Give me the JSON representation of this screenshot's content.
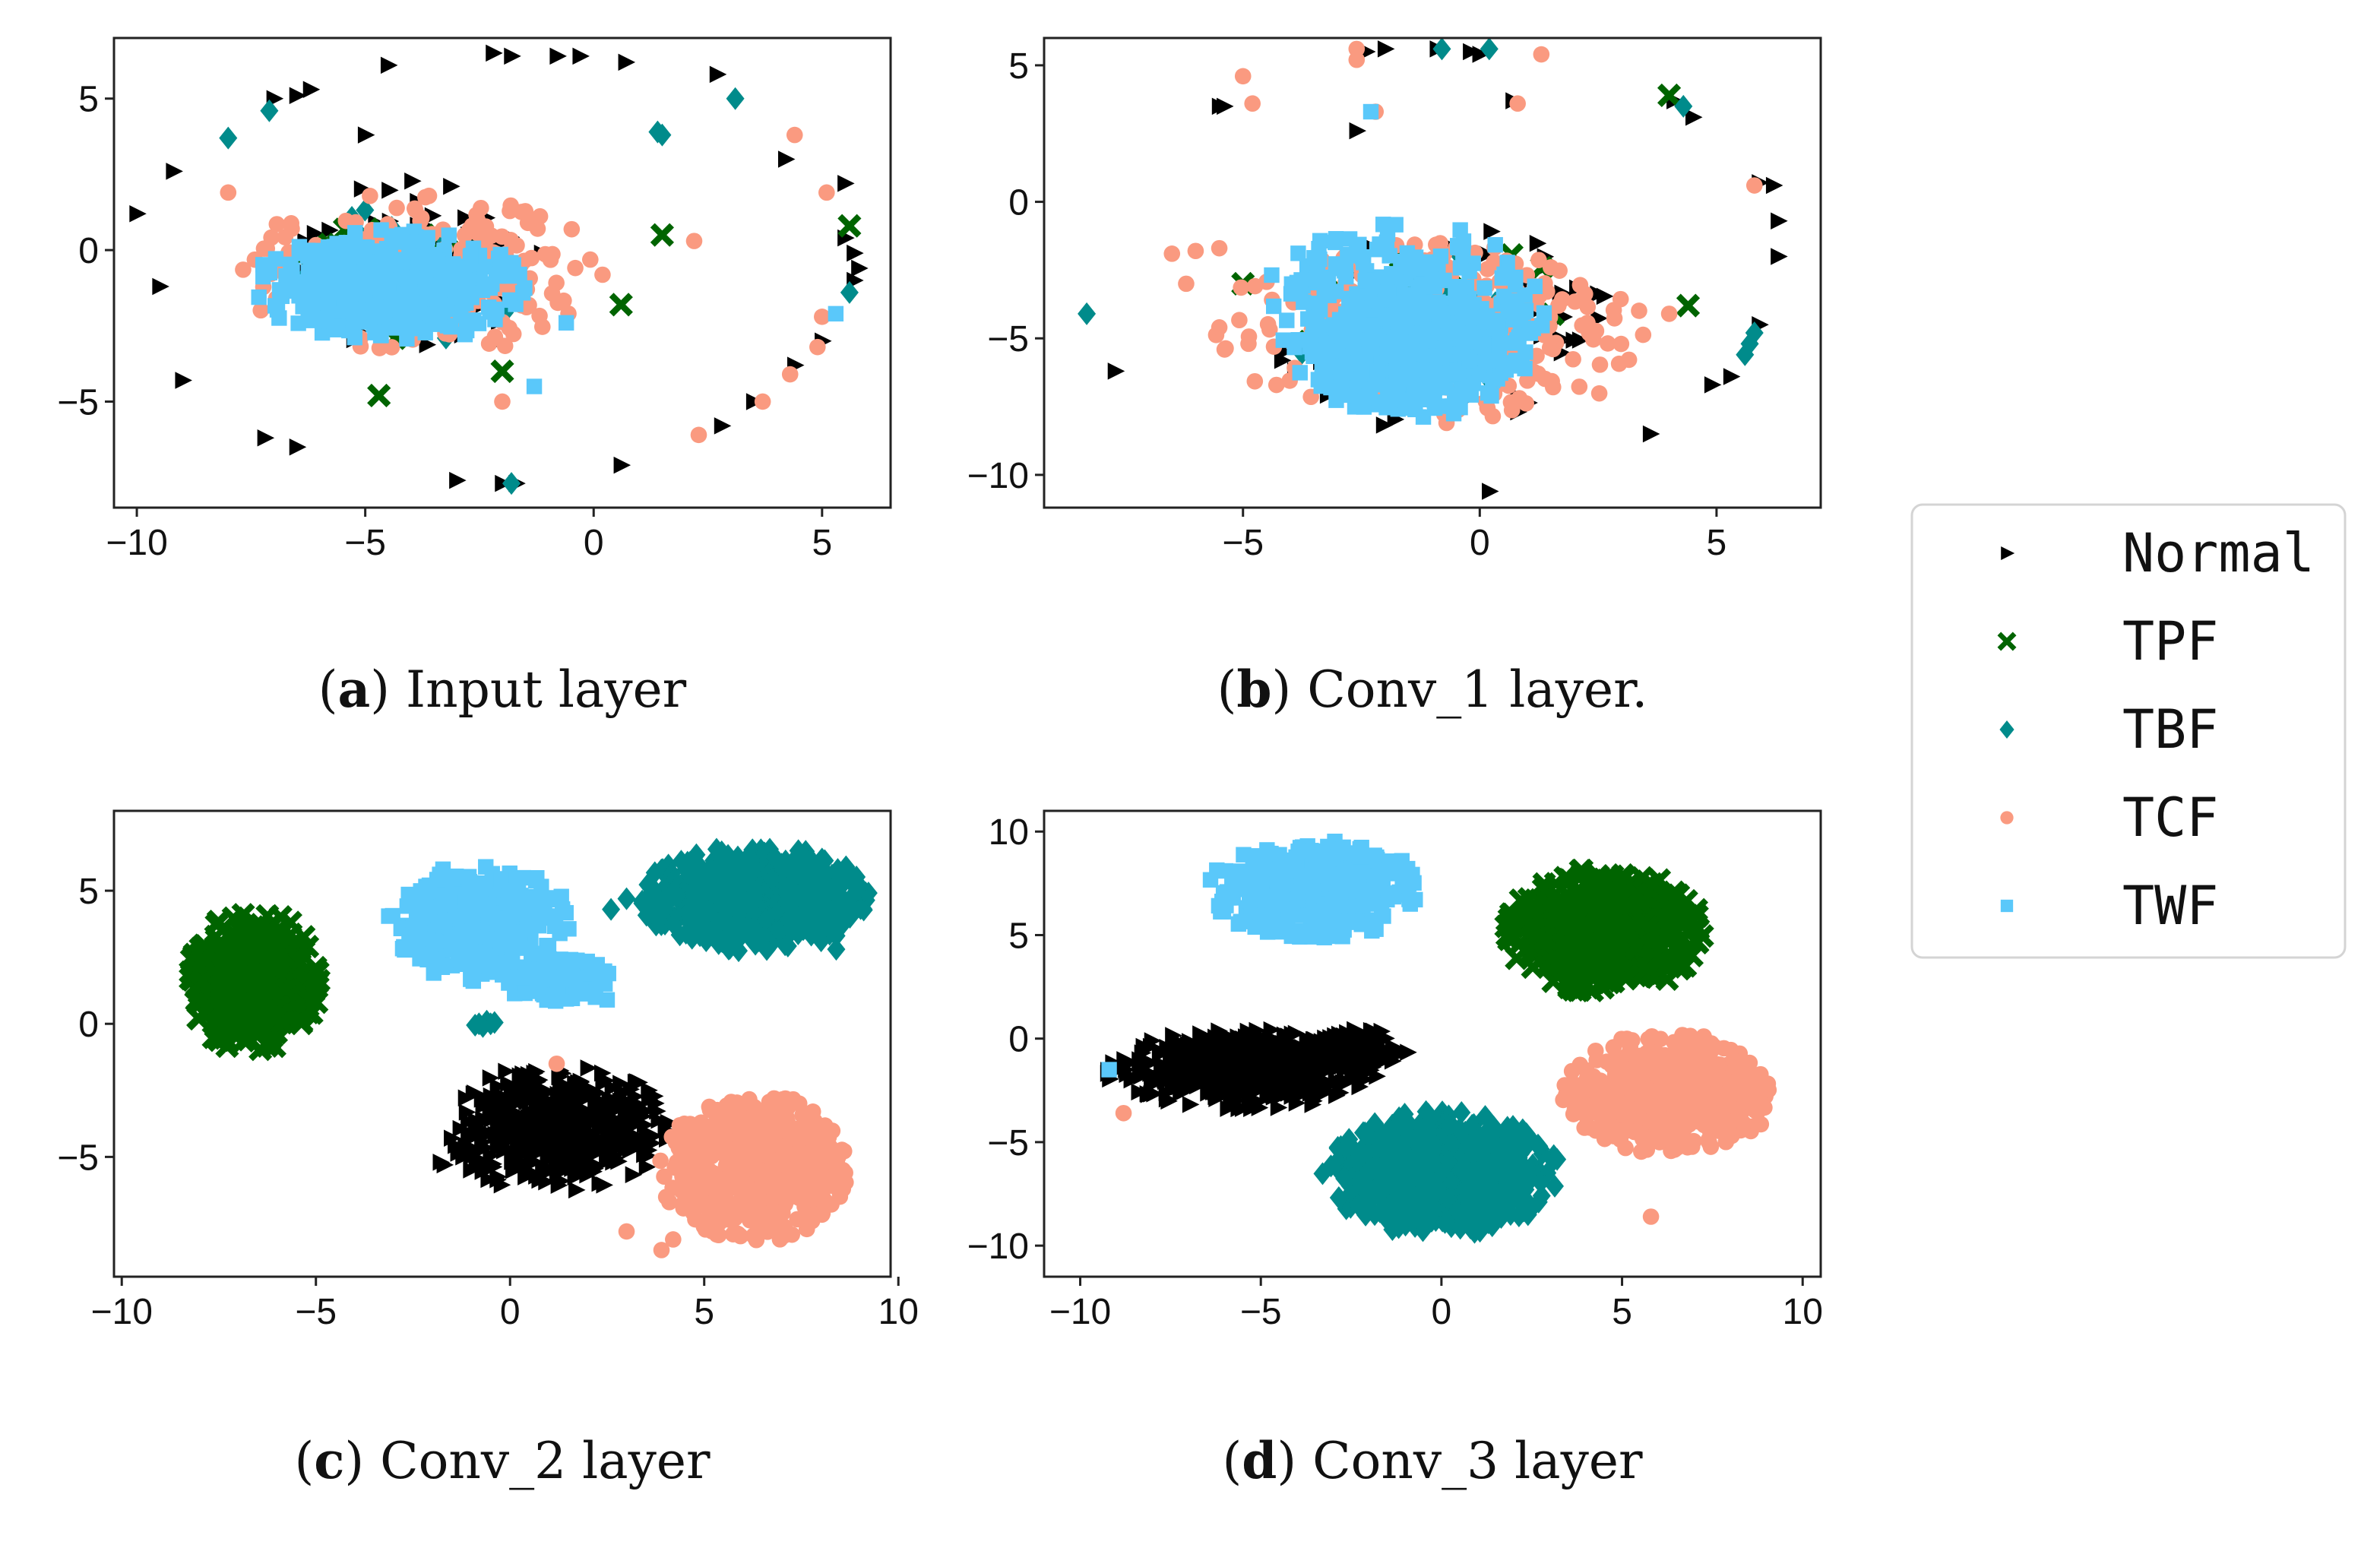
{
  "figure": {
    "legend": [
      {
        "name": "Normal",
        "color": "#000000",
        "marker": "triangle-right"
      },
      {
        "name": "TPF",
        "color": "#006400",
        "marker": "x"
      },
      {
        "name": "TBF",
        "color": "#008b8b",
        "marker": "diamond"
      },
      {
        "name": "TCF",
        "color": "#fa9a80",
        "marker": "circle"
      },
      {
        "name": "TWF",
        "color": "#5ac8fa",
        "marker": "square"
      }
    ]
  },
  "chart_data": [
    {
      "type": "scatter",
      "caption_letter": "a",
      "caption_text": "Input layer",
      "xlim": [
        -10.5,
        6.5
      ],
      "ylim": [
        -8.5,
        7.0
      ],
      "xticks": [
        -10,
        -5,
        0,
        5
      ],
      "yticks": [
        -5,
        0,
        5
      ],
      "xtick_labels": [
        "−10",
        "−5",
        "0",
        "5"
      ],
      "ytick_labels": [
        "−5",
        "0",
        "5"
      ],
      "clusters": [
        {
          "series": "Normal",
          "cx": -3.8,
          "cy": -0.6,
          "rx": 3.1,
          "ry": 2.9,
          "n": 110
        },
        {
          "series": "TCF",
          "cx": -3.8,
          "cy": -0.7,
          "rx": 4.0,
          "ry": 2.8,
          "n": 260
        },
        {
          "series": "TBF",
          "cx": -4.0,
          "cy": -0.8,
          "rx": 2.6,
          "ry": 2.4,
          "n": 50
        },
        {
          "series": "TPF",
          "cx": -4.0,
          "cy": -0.6,
          "rx": 2.8,
          "ry": 2.4,
          "n": 25
        },
        {
          "series": "TWF",
          "cx": -4.5,
          "cy": -1.2,
          "rx": 3.1,
          "ry": 1.9,
          "n": 420
        },
        {
          "series": "TWF",
          "cx": -4.6,
          "cy": -1.3,
          "rx": 1.9,
          "ry": 1.2,
          "n": 320
        }
      ],
      "outliers": {
        "Normal": [
          [
            -2.2,
            6.5
          ],
          [
            -1.8,
            6.4
          ],
          [
            -0.8,
            6.4
          ],
          [
            -0.3,
            6.4
          ],
          [
            0.7,
            6.2
          ],
          [
            -4.5,
            6.1
          ],
          [
            -6.2,
            5.3
          ],
          [
            -6.5,
            5.1
          ],
          [
            -7.0,
            5.0
          ],
          [
            -5.0,
            3.8
          ],
          [
            -9.2,
            2.6
          ],
          [
            -10.0,
            1.2
          ],
          [
            -9.5,
            -1.2
          ],
          [
            -9.0,
            -4.3
          ],
          [
            -7.2,
            -6.2
          ],
          [
            -6.5,
            -6.5
          ],
          [
            -3.0,
            -7.6
          ],
          [
            -2.0,
            -7.7
          ],
          [
            -1.7,
            -7.7
          ],
          [
            0.6,
            -7.1
          ],
          [
            2.7,
            5.8
          ],
          [
            4.2,
            3.0
          ],
          [
            5.5,
            2.2
          ],
          [
            5.5,
            0.4
          ],
          [
            5.7,
            -0.1
          ],
          [
            5.8,
            -0.6
          ],
          [
            5.7,
            -1.0
          ],
          [
            5.0,
            -3.0
          ],
          [
            4.4,
            -3.8
          ],
          [
            3.5,
            -5.0
          ],
          [
            2.8,
            -5.8
          ]
        ],
        "TPF": [
          [
            5.6,
            0.8
          ],
          [
            1.5,
            0.5
          ],
          [
            0.6,
            -1.8
          ],
          [
            -4.7,
            -4.8
          ],
          [
            -2.0,
            -4.0
          ]
        ],
        "TBF": [
          [
            -8.0,
            3.7
          ],
          [
            -7.1,
            4.6
          ],
          [
            3.1,
            5.0
          ],
          [
            1.4,
            3.9
          ],
          [
            1.5,
            3.8
          ],
          [
            5.6,
            -1.4
          ],
          [
            -1.8,
            -7.7
          ]
        ],
        "TCF": [
          [
            -8.0,
            1.9
          ],
          [
            2.3,
            -6.1
          ],
          [
            3.7,
            -5.0
          ],
          [
            4.3,
            -4.1
          ],
          [
            4.9,
            -3.2
          ],
          [
            5.0,
            -2.2
          ],
          [
            4.4,
            3.8
          ],
          [
            5.1,
            1.9
          ],
          [
            2.2,
            0.3
          ],
          [
            -2.0,
            -5.0
          ]
        ],
        "TWF": [
          [
            5.3,
            -2.1
          ],
          [
            -0.6,
            -2.4
          ],
          [
            -1.3,
            -4.5
          ]
        ]
      }
    },
    {
      "type": "scatter",
      "caption_letter": "b",
      "caption_text": "Conv_1 layer.",
      "xlim": [
        -9.2,
        7.2
      ],
      "ylim": [
        -11.2,
        6.0
      ],
      "xticks": [
        -5,
        0,
        5
      ],
      "yticks": [
        -10,
        -5,
        0,
        5
      ],
      "xtick_labels": [
        "−5",
        "0",
        "5"
      ],
      "ytick_labels": [
        "−10",
        "−5",
        "0",
        "5"
      ],
      "clusters": [
        {
          "series": "Normal",
          "cx": -0.8,
          "cy": -4.5,
          "rx": 3.8,
          "ry": 3.9,
          "n": 130
        },
        {
          "series": "TCF",
          "cx": -1.0,
          "cy": -4.8,
          "rx": 4.6,
          "ry": 3.6,
          "n": 280
        },
        {
          "series": "TBF",
          "cx": -1.2,
          "cy": -4.5,
          "rx": 2.8,
          "ry": 2.8,
          "n": 50
        },
        {
          "series": "TPF",
          "cx": -1.0,
          "cy": -4.5,
          "rx": 3.6,
          "ry": 3.0,
          "n": 25
        },
        {
          "series": "TWF",
          "cx": -1.6,
          "cy": -4.2,
          "rx": 3.2,
          "ry": 3.6,
          "n": 340
        },
        {
          "series": "TWF",
          "cx": -1.3,
          "cy": -5.8,
          "rx": 2.3,
          "ry": 2.1,
          "n": 330
        }
      ],
      "outliers": {
        "Normal": [
          [
            -2.4,
            5.5
          ],
          [
            -2.0,
            5.6
          ],
          [
            -0.9,
            5.6
          ],
          [
            -0.2,
            5.5
          ],
          [
            0.0,
            5.4
          ],
          [
            -5.4,
            3.5
          ],
          [
            -5.5,
            3.5
          ],
          [
            -2.6,
            2.6
          ],
          [
            0.7,
            3.7
          ],
          [
            4.1,
            3.7
          ],
          [
            4.5,
            3.1
          ],
          [
            5.9,
            0.7
          ],
          [
            6.2,
            0.6
          ],
          [
            6.3,
            -0.7
          ],
          [
            6.3,
            -2.0
          ],
          [
            5.9,
            -4.5
          ],
          [
            5.3,
            -6.4
          ],
          [
            4.9,
            -6.7
          ],
          [
            3.6,
            -8.5
          ],
          [
            -7.7,
            -6.2
          ],
          [
            0.2,
            -10.6
          ]
        ],
        "TPF": [
          [
            4.0,
            3.9
          ],
          [
            4.4,
            -3.8
          ],
          [
            -5.0,
            -3.0
          ]
        ],
        "TBF": [
          [
            -0.8,
            5.6
          ],
          [
            0.2,
            5.6
          ],
          [
            4.3,
            3.5
          ],
          [
            -8.3,
            -4.1
          ],
          [
            5.6,
            -5.6
          ],
          [
            5.7,
            -5.2
          ],
          [
            5.8,
            -4.8
          ]
        ],
        "TCF": [
          [
            -2.6,
            5.6
          ],
          [
            -2.6,
            5.2
          ],
          [
            -5.0,
            4.6
          ],
          [
            1.3,
            5.4
          ],
          [
            0.8,
            3.6
          ],
          [
            -2.2,
            3.3
          ],
          [
            -4.8,
            3.6
          ],
          [
            5.8,
            0.6
          ],
          [
            -6.5,
            -1.9
          ],
          [
            -6.0,
            -1.8
          ],
          [
            -5.5,
            -1.7
          ],
          [
            -6.2,
            -3.0
          ],
          [
            -5.5,
            -4.6
          ],
          [
            4.0,
            -4.1
          ],
          [
            1.5,
            -2.4
          ]
        ],
        "TWF": [
          [
            -2.3,
            3.3
          ],
          [
            0.6,
            -4.0
          ]
        ]
      }
    },
    {
      "type": "scatter",
      "caption_letter": "c",
      "caption_text": "Conv_2 layer",
      "xlim": [
        -10.2,
        9.8
      ],
      "ylim": [
        -9.5,
        8.0
      ],
      "xticks": [
        -10,
        -5,
        0,
        5,
        10
      ],
      "yticks": [
        -5,
        0,
        5
      ],
      "xtick_labels": [
        "−10",
        "−5",
        "0",
        "5",
        "10"
      ],
      "ytick_labels": [
        "−5",
        "0",
        "5"
      ],
      "clusters": [
        {
          "series": "TPF",
          "cx": -6.6,
          "cy": 1.6,
          "rx": 1.8,
          "ry": 2.7,
          "n": 500
        },
        {
          "series": "TWF",
          "cx": -0.8,
          "cy": 3.8,
          "rx": 2.4,
          "ry": 2.2,
          "n": 320
        },
        {
          "series": "TWF",
          "cx": 1.2,
          "cy": 1.7,
          "rx": 1.4,
          "ry": 1.0,
          "n": 90
        },
        {
          "series": "TBF",
          "cx": 6.3,
          "cy": 4.7,
          "rx": 3.0,
          "ry": 2.0,
          "n": 700
        },
        {
          "series": "Normal",
          "cx": 1.2,
          "cy": -3.9,
          "rx": 2.9,
          "ry": 2.5,
          "n": 520
        },
        {
          "series": "TCF",
          "cx": 6.3,
          "cy": -5.4,
          "rx": 2.5,
          "ry": 2.8,
          "n": 520
        }
      ],
      "outliers": {
        "Normal": [
          [
            -1.8,
            -5.2
          ],
          [
            -1.7,
            -5.3
          ]
        ],
        "TPF": [],
        "TBF": [
          [
            -0.8,
            0.0
          ],
          [
            -0.6,
            0.1
          ],
          [
            -0.5,
            0.0
          ],
          [
            -0.7,
            -0.1
          ],
          [
            -0.4,
            0.05
          ],
          [
            -0.9,
            -0.05
          ],
          [
            2.6,
            4.3
          ],
          [
            3.0,
            4.7
          ],
          [
            8.4,
            2.8
          ]
        ],
        "TCF": [
          [
            1.2,
            -1.5
          ],
          [
            3.0,
            -7.8
          ],
          [
            3.9,
            -8.5
          ],
          [
            4.2,
            -8.1
          ]
        ],
        "TWF": [
          [
            2.5,
            0.9
          ],
          [
            2.2,
            1.0
          ]
        ]
      }
    },
    {
      "type": "scatter",
      "caption_letter": "d",
      "caption_text": "Conv_3 layer",
      "xlim": [
        -11.0,
        10.5
      ],
      "ylim": [
        -11.5,
        11.0
      ],
      "xticks": [
        -10,
        -5,
        0,
        5,
        10
      ],
      "yticks": [
        -10,
        -5,
        0,
        5,
        10
      ],
      "xtick_labels": [
        "−10",
        "−5",
        "0",
        "5",
        "10"
      ],
      "ytick_labels": [
        "−10",
        "−5",
        "0",
        "5",
        "10"
      ],
      "clusters": [
        {
          "series": "TWF",
          "cx": -3.5,
          "cy": 7.2,
          "rx": 3.0,
          "ry": 2.4,
          "n": 420
        },
        {
          "series": "TPF",
          "cx": 4.5,
          "cy": 5.2,
          "rx": 2.8,
          "ry": 3.0,
          "n": 600
        },
        {
          "series": "Normal",
          "cx": -5.5,
          "cy": -1.5,
          "rx": 3.8,
          "ry": 2.0,
          "n": 550
        },
        {
          "series": "Normal",
          "cx": -2.5,
          "cy": -0.5,
          "rx": 1.6,
          "ry": 1.0,
          "n": 120
        },
        {
          "series": "TCF",
          "cx": 6.3,
          "cy": -2.7,
          "rx": 3.0,
          "ry": 3.1,
          "n": 600
        },
        {
          "series": "TBF",
          "cx": 0.0,
          "cy": -6.5,
          "rx": 3.3,
          "ry": 3.0,
          "n": 800
        }
      ],
      "outliers": {
        "Normal": [],
        "TPF": [],
        "TBF": [],
        "TCF": [
          [
            5.8,
            -8.6
          ],
          [
            -8.8,
            -3.6
          ]
        ],
        "TWF": [
          [
            -9.2,
            -1.5
          ]
        ]
      }
    }
  ]
}
